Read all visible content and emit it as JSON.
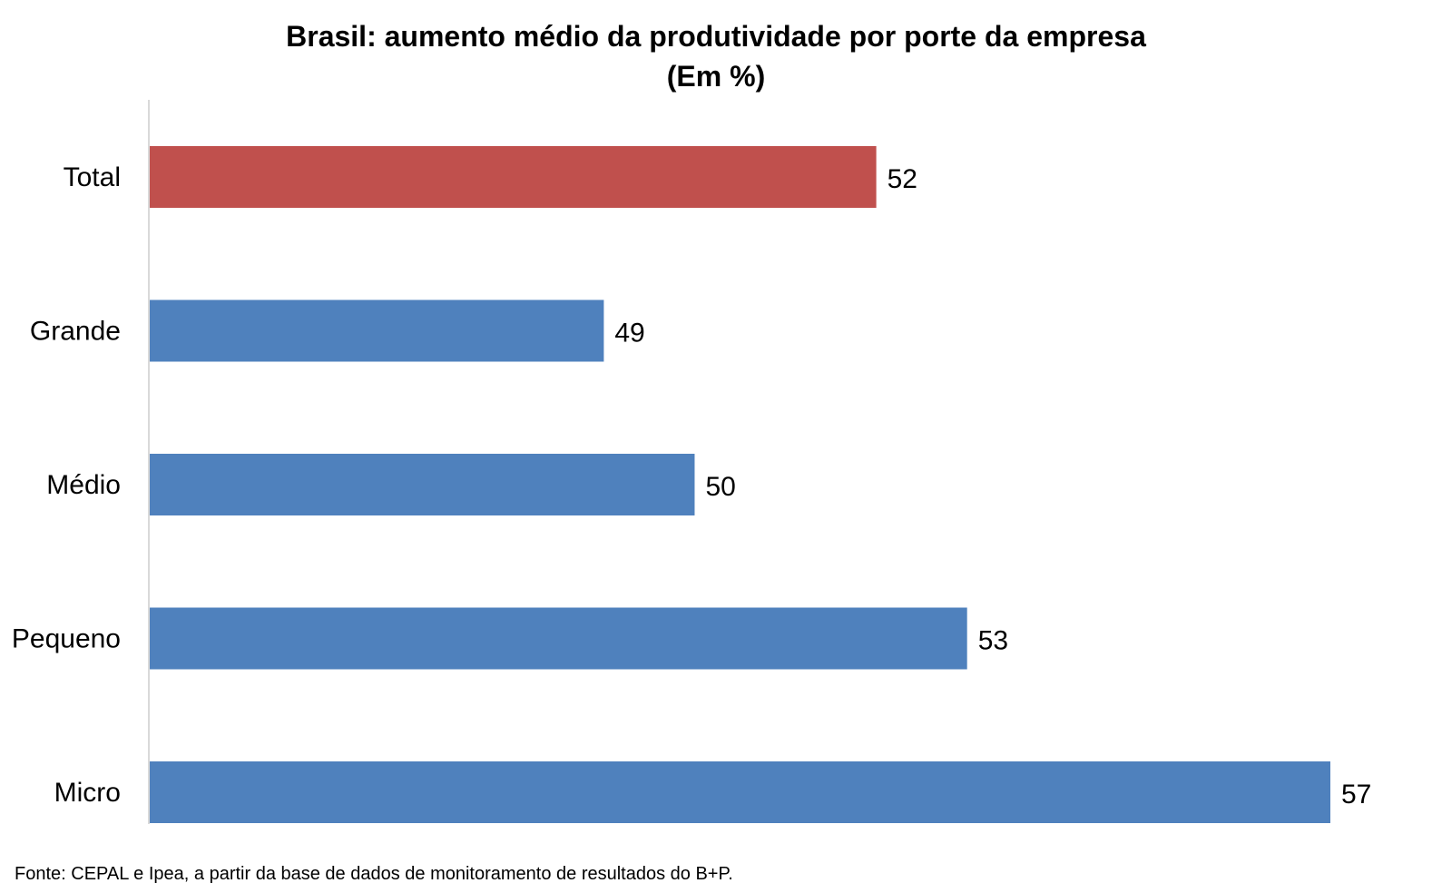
{
  "chart_data": {
    "type": "bar",
    "orientation": "horizontal",
    "title": "Brasil: aumento médio da produtividade por porte da empresa",
    "subtitle": "(Em %)",
    "xlabel": "",
    "ylabel": "",
    "categories": [
      "Total",
      "Grande",
      "Médio",
      "Pequeno",
      "Micro"
    ],
    "values": [
      52,
      49,
      50,
      53,
      57
    ],
    "data_labels": [
      "52",
      "49",
      "50",
      "53",
      "57"
    ],
    "colors": [
      "#C0504D",
      "#4F81BD",
      "#4F81BD",
      "#4F81BD",
      "#4F81BD"
    ],
    "xlim": [
      44,
      57
    ],
    "grid": false,
    "legend": "none"
  },
  "source_note": "Fonte: CEPAL e Ipea, a partir da base de dados de monitoramento de resultados do B+P."
}
